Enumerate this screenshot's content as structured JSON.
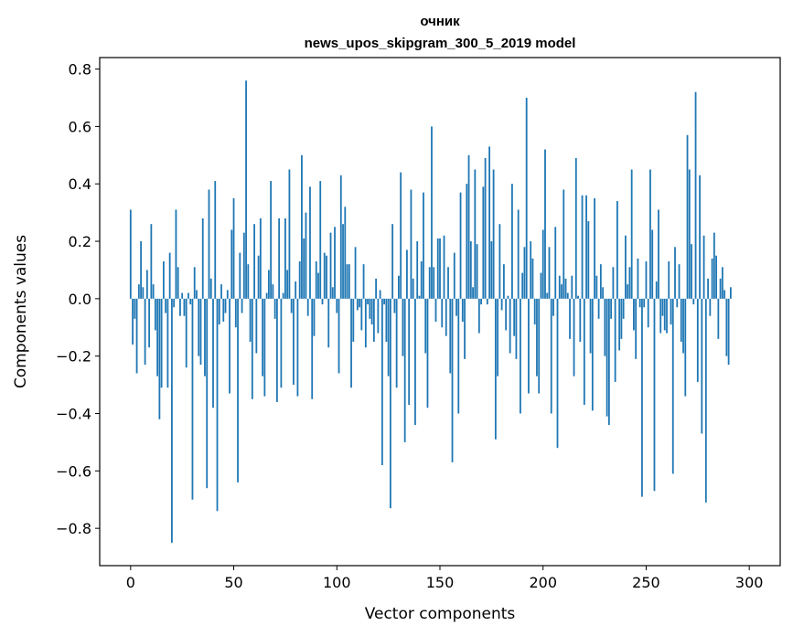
{
  "chart_data": {
    "type": "bar",
    "title": "очник",
    "subtitle": "news_upos_skipgram_300_5_2019 model",
    "xlabel": "Vector components",
    "ylabel": "Components values",
    "xlim": [
      -15,
      315
    ],
    "ylim": [
      -0.93,
      0.84
    ],
    "xticks": [
      0,
      50,
      100,
      150,
      200,
      250,
      300
    ],
    "xtick_labels": [
      "0",
      "50",
      "100",
      "150",
      "200",
      "250",
      "300"
    ],
    "yticks": [
      -0.8,
      -0.6,
      -0.4,
      -0.2,
      0.0,
      0.2,
      0.4,
      0.6,
      0.8
    ],
    "ytick_labels": [
      "−0.8",
      "−0.6",
      "−0.4",
      "−0.2",
      "0.0",
      "0.2",
      "0.4",
      "0.6",
      "0.8"
    ],
    "bar_color": "#1f77b4",
    "values": [
      0.31,
      -0.16,
      -0.07,
      -0.26,
      0.05,
      0.2,
      0.04,
      -0.23,
      0.1,
      -0.17,
      0.26,
      0.05,
      -0.11,
      -0.27,
      -0.42,
      -0.31,
      0.13,
      -0.05,
      -0.31,
      0.16,
      -0.85,
      -0.03,
      0.31,
      0.11,
      -0.06,
      0.02,
      -0.06,
      -0.24,
      0.02,
      -0.02,
      -0.7,
      0.11,
      0.03,
      -0.2,
      -0.23,
      0.28,
      -0.27,
      -0.66,
      0.38,
      0.07,
      -0.38,
      0.41,
      -0.74,
      -0.09,
      0.05,
      -0.08,
      -0.05,
      0.03,
      -0.33,
      0.24,
      0.35,
      -0.1,
      -0.64,
      0.16,
      -0.05,
      0.23,
      0.76,
      0.12,
      -0.15,
      -0.35,
      0.26,
      -0.19,
      0.15,
      0.28,
      -0.27,
      -0.34,
      0.02,
      0.1,
      0.41,
      0.05,
      -0.07,
      -0.36,
      0.28,
      -0.31,
      0.02,
      0.28,
      0.1,
      0.45,
      -0.05,
      -0.3,
      0.06,
      -0.34,
      0.13,
      0.5,
      0.21,
      0.3,
      -0.06,
      0.39,
      -0.35,
      -0.13,
      0.13,
      0.09,
      0.41,
      -0.02,
      0.16,
      0.15,
      -0.17,
      0.23,
      0.04,
      0.25,
      -0.05,
      -0.26,
      0.43,
      0.26,
      0.32,
      0.12,
      0.12,
      -0.31,
      -0.15,
      0.18,
      -0.04,
      -0.03,
      -0.11,
      0.12,
      -0.17,
      -0.02,
      -0.07,
      -0.09,
      -0.15,
      0.07,
      -0.12,
      0.03,
      -0.58,
      -0.02,
      -0.15,
      -0.27,
      -0.73,
      0.26,
      -0.05,
      -0.31,
      0.08,
      0.44,
      -0.2,
      -0.5,
      0.17,
      -0.37,
      0.38,
      0.07,
      -0.44,
      0.2,
      0.01,
      0.13,
      0.37,
      -0.19,
      -0.38,
      0.11,
      0.6,
      0.11,
      -0.08,
      0.21,
      0.21,
      -0.1,
      0.22,
      -0.13,
      0.11,
      -0.26,
      -0.57,
      0.16,
      -0.06,
      -0.4,
      0.37,
      -0.08,
      -0.21,
      0.4,
      0.5,
      0.2,
      0.04,
      0.45,
      0.19,
      -0.12,
      -0.02,
      0.39,
      0.49,
      -0.02,
      0.53,
      0.2,
      0.45,
      -0.49,
      -0.27,
      0.26,
      -0.04,
      0.12,
      -0.11,
      0.01,
      -0.19,
      0.4,
      -0.13,
      -0.21,
      0.31,
      -0.4,
      0.09,
      0.18,
      0.7,
      -0.33,
      0.2,
      0.14,
      -0.09,
      -0.27,
      -0.33,
      0.09,
      0.24,
      0.52,
      0.02,
      0.18,
      -0.4,
      -0.06,
      0.25,
      -0.52,
      0.08,
      0.05,
      0.38,
      0.07,
      0.02,
      -0.14,
      0.08,
      -0.27,
      0.49,
      0.01,
      -0.15,
      0.36,
      -0.37,
      0.36,
      0.27,
      -0.19,
      -0.39,
      0.35,
      0.08,
      -0.07,
      0.12,
      0.04,
      -0.2,
      -0.41,
      -0.44,
      -0.07,
      0.11,
      -0.29,
      0.34,
      -0.18,
      -0.14,
      -0.07,
      0.22,
      0.05,
      0.11,
      0.45,
      -0.11,
      -0.21,
      0.14,
      -0.03,
      -0.69,
      -0.03,
      0.13,
      -0.1,
      0.45,
      0.24,
      -0.67,
      0.06,
      0.31,
      -0.12,
      -0.06,
      -0.11,
      -0.12,
      0.13,
      -0.09,
      -0.61,
      0.18,
      -0.03,
      0.12,
      -0.15,
      -0.19,
      -0.34,
      0.57,
      0.45,
      0.19,
      -0.02,
      0.72,
      -0.29,
      0.43,
      -0.47,
      0.22,
      -0.71,
      0.07,
      -0.06,
      0.14,
      0.23,
      0.15,
      -0.14,
      0.07,
      0.11,
      0.03,
      -0.2,
      -0.23,
      0.04
    ]
  }
}
